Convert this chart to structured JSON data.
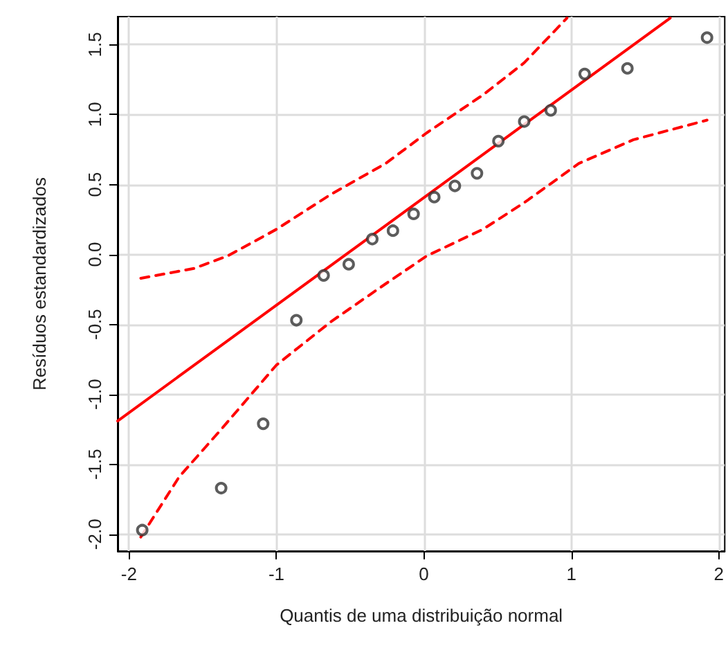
{
  "chart_data": {
    "type": "scatter",
    "xlabel": "Quantis de uma distribuição normal",
    "ylabel": "Resíduos estandardizados",
    "xlim": [
      -2.077,
      2.04
    ],
    "ylim": [
      -2.12,
      1.7
    ],
    "xticks": [
      -2,
      -1,
      0,
      1,
      2
    ],
    "yticks": [
      {
        "value": -2,
        "label": "-2.0"
      },
      {
        "value": -1.5,
        "label": "-1.5"
      },
      {
        "value": -1,
        "label": "-1.0"
      },
      {
        "value": -0.5,
        "label": "-0.5"
      },
      {
        "value": 0,
        "label": "0.0"
      },
      {
        "value": 0.5,
        "label": "0.5"
      },
      {
        "value": 1,
        "label": "1.0"
      },
      {
        "value": 1.5,
        "label": "1.5"
      }
    ],
    "grid": true,
    "series": [
      {
        "color": "#333333",
        "marker": "circle",
        "x": [
          -1.91,
          -1.375,
          -1.09,
          -0.865,
          -0.68,
          -0.51,
          -0.35,
          -0.21,
          -0.07,
          0.07,
          0.21,
          0.36,
          0.505,
          0.68,
          0.86,
          1.09,
          1.38,
          1.92
        ],
        "values": [
          -1.97,
          -1.67,
          -1.21,
          -0.47,
          -0.15,
          -0.07,
          0.11,
          0.17,
          0.29,
          0.41,
          0.49,
          0.58,
          0.81,
          0.95,
          1.03,
          1.29,
          1.33,
          1.55
        ]
      },
      {
        "type": "line",
        "color": "#ff0000",
        "marker": "none",
        "line_style": "solid",
        "x": [
          -2.077,
          1.67
        ],
        "values": [
          -1.19,
          1.69
        ]
      },
      {
        "type": "line",
        "color": "#ff0000",
        "marker": "none",
        "line_style": "dashed",
        "x": [
          -1.92,
          -1.56,
          -1.33,
          -1.0,
          -0.63,
          -0.26,
          0.02,
          0.4,
          0.68,
          0.97
        ],
        "values": [
          -0.17,
          -0.1,
          -0.01,
          0.18,
          0.43,
          0.65,
          0.87,
          1.14,
          1.37,
          1.69
        ]
      },
      {
        "type": "line",
        "color": "#ff0000",
        "marker": "none",
        "line_style": "dashed",
        "x": [
          -1.92,
          -1.66,
          -1.375,
          -1.0,
          -0.63,
          -0.26,
          0.02,
          0.4,
          0.68,
          1.05,
          1.42,
          1.92
        ],
        "values": [
          -2.02,
          -1.59,
          -1.25,
          -0.79,
          -0.48,
          -0.21,
          -0.01,
          0.18,
          0.37,
          0.65,
          0.82,
          0.96
        ]
      }
    ]
  }
}
